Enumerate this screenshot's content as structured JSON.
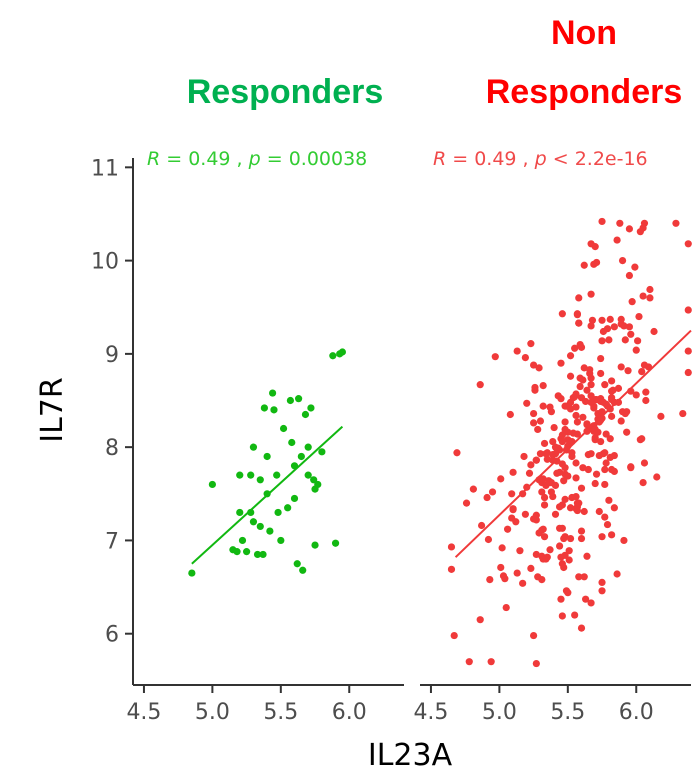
{
  "chart_data": {
    "type": "scatter",
    "xlabel": "IL23A",
    "ylabel": "IL7R",
    "ylim": [
      5.45,
      11.1
    ],
    "y_ticks": [
      6,
      7,
      8,
      9,
      10,
      11
    ],
    "x_ticks": [
      "4.5",
      "5.0",
      "5.5",
      "6.0"
    ],
    "grid": false,
    "panels": [
      {
        "name": "Responders",
        "color": "#00b050",
        "point_color": "#11b811",
        "stat_color": "#33cc33",
        "stat": {
          "r_label": "R",
          "r_text": " = 0.49 , ",
          "p_label": "p",
          "p_text": " = 0.00038"
        },
        "xlim": [
          4.42,
          6.4
        ],
        "fit": {
          "x": [
            4.85,
            5.95
          ],
          "y": [
            6.75,
            8.22
          ]
        },
        "points": [
          [
            4.85,
            6.65
          ],
          [
            5.0,
            7.6
          ],
          [
            5.15,
            6.9
          ],
          [
            5.18,
            6.88
          ],
          [
            5.2,
            7.7
          ],
          [
            5.2,
            7.3
          ],
          [
            5.22,
            7.0
          ],
          [
            5.25,
            6.88
          ],
          [
            5.28,
            7.7
          ],
          [
            5.28,
            7.3
          ],
          [
            5.3,
            8.0
          ],
          [
            5.3,
            7.2
          ],
          [
            5.33,
            6.85
          ],
          [
            5.35,
            7.65
          ],
          [
            5.35,
            7.15
          ],
          [
            5.37,
            6.85
          ],
          [
            5.38,
            8.42
          ],
          [
            5.4,
            7.9
          ],
          [
            5.4,
            7.5
          ],
          [
            5.42,
            7.1
          ],
          [
            5.44,
            8.58
          ],
          [
            5.45,
            8.4
          ],
          [
            5.47,
            7.7
          ],
          [
            5.48,
            7.3
          ],
          [
            5.5,
            7.0
          ],
          [
            5.52,
            8.2
          ],
          [
            5.55,
            7.35
          ],
          [
            5.57,
            8.5
          ],
          [
            5.58,
            8.05
          ],
          [
            5.6,
            7.8
          ],
          [
            5.6,
            7.45
          ],
          [
            5.62,
            6.75
          ],
          [
            5.63,
            8.52
          ],
          [
            5.65,
            7.9
          ],
          [
            5.66,
            6.68
          ],
          [
            5.68,
            8.35
          ],
          [
            5.7,
            7.7
          ],
          [
            5.7,
            8.0
          ],
          [
            5.72,
            8.42
          ],
          [
            5.74,
            7.65
          ],
          [
            5.75,
            6.95
          ],
          [
            5.75,
            7.55
          ],
          [
            5.77,
            7.6
          ],
          [
            5.8,
            7.95
          ],
          [
            5.88,
            8.98
          ],
          [
            5.93,
            9.0
          ],
          [
            5.95,
            9.02
          ],
          [
            5.9,
            6.97
          ]
        ]
      },
      {
        "name": "Non Responders",
        "color": "#ff0000",
        "point_color": "#f03a3a",
        "stat_color": "#f04a4a",
        "stat": {
          "r_label": "R",
          "r_text": " = 0.49 , ",
          "p_label": "p",
          "p_text": " < 2.2e-16"
        },
        "xlim": [
          4.42,
          6.4
        ],
        "fit": {
          "x": [
            4.68,
            6.4
          ],
          "y": [
            6.82,
            9.25
          ]
        }
      }
    ]
  }
}
